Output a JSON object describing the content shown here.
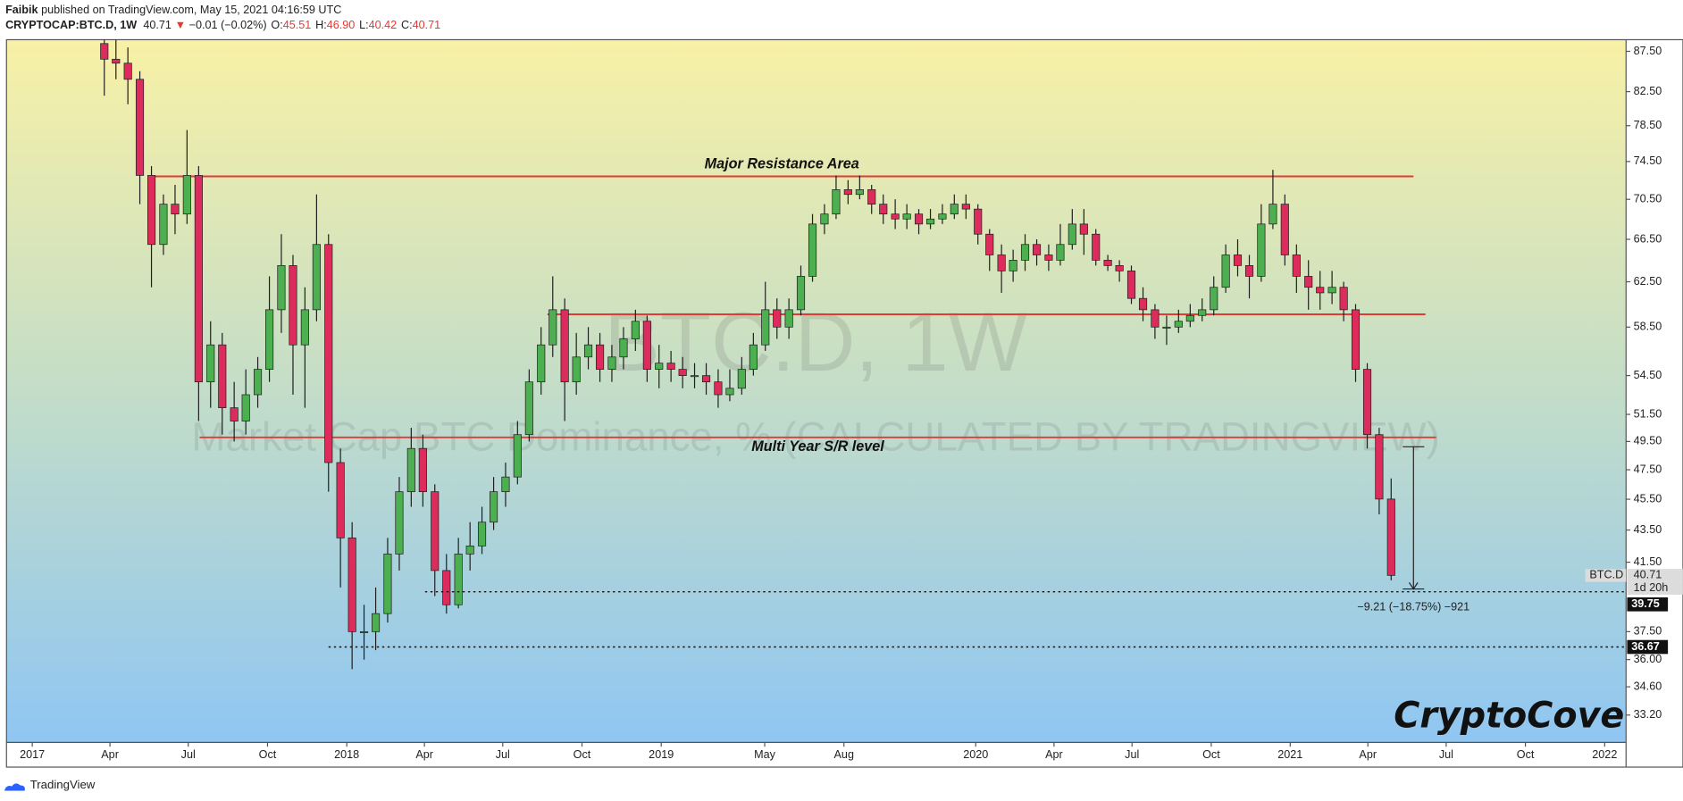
{
  "header": {
    "author": "Faibik",
    "published": "published on TradingView.com, May 15, 2021 04:16:59 UTC",
    "symbol": "CRYPTOCAP:BTC.D, 1W",
    "last": "40.71",
    "change": "−0.01 (−0.02%)",
    "ohlc": [
      {
        "key": "O:",
        "value": "45.51"
      },
      {
        "key": "H:",
        "value": "46.90"
      },
      {
        "key": "L:",
        "value": "40.42"
      },
      {
        "key": "C:",
        "value": "40.71"
      }
    ]
  },
  "footer": "TradingView",
  "chart_data": {
    "type": "candlestick",
    "title": "BTC.D, 1W",
    "subtitle": "Market Cap BTC Dominance, % (CALCULATED BY TRADINGVIEW)",
    "brand": "CryptoCove",
    "up_color": "#4caf50",
    "down_color": "#dd2c5c",
    "log_scale": true,
    "grid": false,
    "xlim": [
      2016.918,
      2022.068
    ],
    "ylim": [
      31.9,
      89.0
    ],
    "xticks": [
      2017,
      {
        "value": 2017.247,
        "label": "Apr"
      },
      {
        "value": 2017.496,
        "label": "Jul"
      },
      {
        "value": 2017.748,
        "label": "Oct"
      },
      2018,
      {
        "value": 2018.247,
        "label": "Apr"
      },
      {
        "value": 2018.496,
        "label": "Jul"
      },
      {
        "value": 2018.748,
        "label": "Oct"
      },
      2019,
      {
        "value": 2019.329,
        "label": "May"
      },
      {
        "value": 2019.581,
        "label": "Aug"
      },
      2020,
      {
        "value": 2020.249,
        "label": "Apr"
      },
      {
        "value": 2020.497,
        "label": "Jul"
      },
      {
        "value": 2020.749,
        "label": "Oct"
      },
      2021,
      {
        "value": 2021.247,
        "label": "Apr"
      },
      {
        "value": 2021.496,
        "label": "Jul"
      },
      {
        "value": 2021.748,
        "label": "Oct"
      },
      2022
    ],
    "yticks": [
      {
        "value": 87.5,
        "label": "87.50"
      },
      {
        "value": 82.5,
        "label": "82.50"
      },
      {
        "value": 78.5,
        "label": "78.50"
      },
      {
        "value": 74.5,
        "label": "74.50"
      },
      {
        "value": 70.5,
        "label": "70.50"
      },
      {
        "value": 66.5,
        "label": "66.50"
      },
      {
        "value": 62.5,
        "label": "62.50"
      },
      {
        "value": 58.5,
        "label": "58.50"
      },
      {
        "value": 54.5,
        "label": "54.50"
      },
      {
        "value": 51.5,
        "label": "51.50"
      },
      {
        "value": 49.5,
        "label": "49.50"
      },
      {
        "value": 47.5,
        "label": "47.50"
      },
      {
        "value": 45.5,
        "label": "45.50"
      },
      {
        "value": 43.5,
        "label": "43.50"
      },
      {
        "value": 41.5,
        "label": "41.50"
      },
      {
        "value": 37.5,
        "label": "37.50"
      },
      {
        "value": 36,
        "label": "36.00"
      },
      {
        "value": 34.6,
        "label": "34.60"
      },
      {
        "value": 33.2,
        "label": "33.20"
      }
    ],
    "x": [
      2017.229,
      2017.266,
      2017.304,
      2017.342,
      2017.379,
      2017.417,
      2017.454,
      2017.492,
      2017.529,
      2017.567,
      2017.604,
      2017.642,
      2017.679,
      2017.717,
      2017.754,
      2017.792,
      2017.829,
      2017.867,
      2017.904,
      2017.942,
      2017.98,
      2018.017,
      2018.055,
      2018.092,
      2018.13,
      2018.167,
      2018.205,
      2018.242,
      2018.28,
      2018.317,
      2018.355,
      2018.392,
      2018.43,
      2018.467,
      2018.505,
      2018.543,
      2018.58,
      2018.618,
      2018.655,
      2018.693,
      2018.73,
      2018.768,
      2018.805,
      2018.843,
      2018.88,
      2018.918,
      2018.955,
      2018.993,
      2019.031,
      2019.068,
      2019.106,
      2019.143,
      2019.181,
      2019.218,
      2019.256,
      2019.293,
      2019.331,
      2019.368,
      2019.406,
      2019.444,
      2019.481,
      2019.519,
      2019.556,
      2019.594,
      2019.631,
      2019.669,
      2019.706,
      2019.744,
      2019.781,
      2019.819,
      2019.856,
      2019.894,
      2019.932,
      2019.969,
      2020.007,
      2020.044,
      2020.082,
      2020.119,
      2020.157,
      2020.194,
      2020.232,
      2020.269,
      2020.307,
      2020.344,
      2020.382,
      2020.42,
      2020.457,
      2020.495,
      2020.532,
      2020.57,
      2020.607,
      2020.645,
      2020.682,
      2020.72,
      2020.757,
      2020.795,
      2020.833,
      2020.87,
      2020.908,
      2020.945,
      2020.983,
      2021.02,
      2021.058,
      2021.095,
      2021.133,
      2021.17,
      2021.208,
      2021.245,
      2021.283,
      2021.321
    ],
    "open": [
      88.5,
      86.5,
      86,
      84,
      73,
      66,
      70,
      69,
      73,
      54,
      57,
      52,
      51,
      53,
      55,
      60,
      64,
      57,
      60,
      66,
      48,
      43,
      37.5,
      37.5,
      38.5,
      42,
      46,
      49,
      46,
      41,
      39,
      42,
      42.5,
      44,
      46,
      47,
      50,
      54,
      57,
      60,
      54,
      56,
      57,
      55,
      56,
      57.5,
      59,
      55,
      55.5,
      55,
      54.5,
      54.5,
      54,
      53,
      53.5,
      55,
      57,
      60,
      58.5,
      60,
      63,
      68,
      69,
      71.5,
      71,
      71.5,
      70,
      69,
      68.5,
      69,
      68,
      68.5,
      69,
      70,
      69.5,
      67,
      65,
      63.5,
      64.5,
      66,
      65,
      64.5,
      66,
      68,
      67,
      64.5,
      64,
      63.5,
      61,
      60,
      58.5,
      58.5,
      59,
      59.5,
      60,
      62,
      65,
      64,
      63,
      68,
      70,
      65,
      63,
      62,
      61.5,
      62,
      60,
      55,
      50,
      45.51
    ],
    "high": [
      90,
      89,
      88,
      85,
      74,
      71,
      72,
      78,
      74,
      59,
      58,
      54,
      55,
      56,
      63,
      67,
      65,
      62,
      71,
      67,
      49,
      44,
      39,
      40,
      43,
      47,
      50.5,
      50,
      46.5,
      42,
      43,
      44,
      45,
      47,
      48,
      51,
      55,
      58.5,
      63,
      61,
      58,
      58.5,
      58,
      57,
      58.5,
      60,
      59.5,
      57,
      56.5,
      56,
      55.5,
      55.5,
      55,
      55,
      56,
      58,
      62.5,
      61,
      61,
      64,
      69,
      70,
      73,
      72.5,
      73,
      72,
      71,
      70.5,
      70,
      69.5,
      69.5,
      70,
      71,
      71,
      70,
      67.5,
      66,
      65.5,
      67,
      66.5,
      66,
      68,
      69.5,
      69.5,
      67.5,
      65,
      64.5,
      64,
      62,
      60.5,
      59.5,
      60,
      60.5,
      61,
      63,
      66,
      66.5,
      65,
      70,
      73.6,
      71,
      66,
      64.5,
      63.5,
      63.5,
      62.5,
      60.5,
      55.5,
      50.5,
      46.9
    ],
    "low": [
      82,
      84,
      81,
      70,
      62,
      65,
      67,
      68,
      51,
      52,
      50,
      49.5,
      50,
      52,
      54,
      58,
      53,
      52,
      59,
      46,
      40,
      35.5,
      36,
      36.5,
      38,
      41,
      45,
      45,
      39.5,
      38.5,
      38.8,
      41,
      42,
      43.5,
      45,
      46.5,
      49.5,
      53,
      56,
      51,
      53,
      55,
      54,
      54,
      55,
      56.5,
      54,
      53.5,
      54,
      53.5,
      53.5,
      53,
      52,
      52.5,
      53,
      54.5,
      56.5,
      57.5,
      57.5,
      59.5,
      62.5,
      67,
      68.5,
      70,
      70.5,
      69,
      68,
      67.5,
      67.5,
      67,
      67.5,
      68,
      68.5,
      68.5,
      66,
      63.5,
      61.5,
      62.5,
      63.5,
      64,
      63.5,
      64,
      65.5,
      65,
      64,
      63.5,
      62.5,
      60.5,
      59,
      57.5,
      57,
      58,
      58.5,
      59,
      59.5,
      61.5,
      63,
      61,
      62.5,
      67.5,
      64,
      61.5,
      60,
      60,
      60.5,
      59,
      54,
      49,
      44.5,
      40.42
    ],
    "close": [
      86.5,
      86,
      84,
      73,
      66,
      70,
      69,
      73,
      54,
      57,
      52,
      51,
      53,
      55,
      60,
      64,
      57,
      60,
      66,
      48,
      43,
      37.5,
      37.5,
      38.5,
      42,
      46,
      49,
      46,
      41,
      39,
      42,
      42.5,
      44,
      46,
      47,
      50,
      54,
      57,
      60,
      54,
      56,
      57,
      55,
      56,
      57.5,
      59,
      55,
      55.5,
      55,
      54.5,
      54.5,
      54,
      53,
      53.5,
      55,
      57,
      60,
      58.5,
      60,
      63,
      68,
      69,
      71.5,
      71,
      71.5,
      70,
      69,
      68.5,
      69,
      68,
      68.5,
      69,
      70,
      69.5,
      67,
      65,
      63.5,
      64.5,
      66,
      65,
      64.5,
      66,
      68,
      67,
      64.5,
      64,
      63.5,
      61,
      60,
      58.5,
      58.5,
      59,
      59.5,
      60,
      62,
      65,
      64,
      63,
      68,
      70,
      65,
      63,
      62,
      61.5,
      62,
      60,
      55,
      50,
      45.51,
      40.71
    ],
    "levels": [
      {
        "value": 72.9,
        "from": 2017.375,
        "to": 2021.392,
        "label": "Major Resistance Area"
      },
      {
        "value": 59.6,
        "from": 2018.638,
        "to": 2021.43
      },
      {
        "value": 49.8,
        "from": 2017.532,
        "to": 2021.464,
        "label": "Multi Year S/R level"
      }
    ],
    "hlines": [
      {
        "value": 39.75,
        "from": 2018.249
      },
      {
        "value": 36.67,
        "from": 2017.942
      }
    ],
    "measure": {
      "x": 2021.392,
      "from": 49.12,
      "to": 39.91,
      "label": "−9.21 (−18.75%) −921"
    },
    "last": {
      "name": "BTC.D",
      "value": 40.71,
      "countdown": "1d 20h"
    }
  }
}
